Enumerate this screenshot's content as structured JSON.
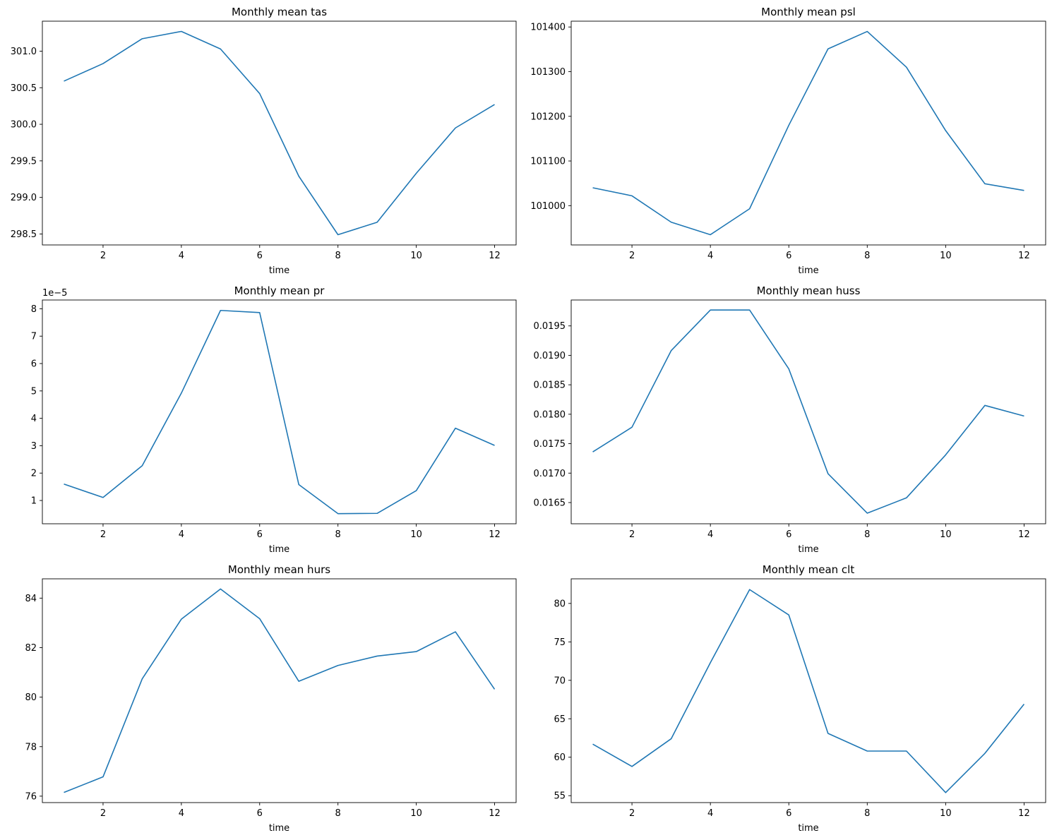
{
  "chart_data": [
    {
      "type": "line",
      "title": "Monthly mean tas",
      "xlabel": "time",
      "ylabel": "",
      "offset_text": "",
      "x": [
        1,
        2,
        3,
        4,
        5,
        6,
        7,
        8,
        9,
        10,
        11,
        12
      ],
      "series": [
        {
          "values": [
            300.59,
            300.83,
            301.17,
            301.27,
            301.03,
            300.42,
            299.29,
            298.49,
            298.66,
            299.33,
            299.95,
            300.27
          ],
          "color": "#1f77b4"
        }
      ],
      "xlim": [
        0.45,
        12.55
      ],
      "ylim": [
        298.35,
        301.41
      ],
      "xticks": [
        2,
        4,
        6,
        8,
        10,
        12
      ],
      "xticklabels": [
        "2",
        "4",
        "6",
        "8",
        "10",
        "12"
      ],
      "yticks": [
        298.5,
        299.0,
        299.5,
        300.0,
        300.5,
        301.0
      ],
      "yticklabels": [
        "298.5",
        "299.0",
        "299.5",
        "300.0",
        "300.5",
        "301.0"
      ],
      "grid": false
    },
    {
      "type": "line",
      "title": "Monthly mean psl",
      "xlabel": "time",
      "ylabel": "",
      "offset_text": "",
      "x": [
        1,
        2,
        3,
        4,
        5,
        6,
        7,
        8,
        9,
        10,
        11,
        12
      ],
      "series": [
        {
          "values": [
            101040,
            101022,
            100963,
            100935,
            100993,
            101180,
            101351,
            101390,
            101310,
            101168,
            101049,
            101034
          ],
          "color": "#1f77b4"
        }
      ],
      "xlim": [
        0.45,
        12.55
      ],
      "ylim": [
        100912,
        101413
      ],
      "xticks": [
        2,
        4,
        6,
        8,
        10,
        12
      ],
      "xticklabels": [
        "2",
        "4",
        "6",
        "8",
        "10",
        "12"
      ],
      "yticks": [
        101000,
        101100,
        101200,
        101300,
        101400
      ],
      "yticklabels": [
        "101000",
        "101100",
        "101200",
        "101300",
        "101400"
      ],
      "grid": false
    },
    {
      "type": "line",
      "title": "Monthly mean pr",
      "xlabel": "time",
      "ylabel": "",
      "offset_text": "1e−5",
      "x": [
        1,
        2,
        3,
        4,
        5,
        6,
        7,
        8,
        9,
        10,
        11,
        12
      ],
      "series": [
        {
          "values": [
            1.6e-05,
            1.11e-05,
            2.27e-05,
            4.92e-05,
            7.94e-05,
            7.86e-05,
            1.58e-05,
            5.2e-06,
            5.3e-06,
            1.36e-05,
            3.64e-05,
            3.01e-05
          ],
          "color": "#1f77b4"
        }
      ],
      "xlim": [
        0.45,
        12.55
      ],
      "ylim": [
        1.5e-06,
        8.32e-05
      ],
      "xticks": [
        2,
        4,
        6,
        8,
        10,
        12
      ],
      "xticklabels": [
        "2",
        "4",
        "6",
        "8",
        "10",
        "12"
      ],
      "yticks": [
        1e-05,
        2e-05,
        3e-05,
        4e-05,
        5e-05,
        6e-05,
        7e-05,
        8e-05
      ],
      "yticklabels": [
        "1",
        "2",
        "3",
        "4",
        "5",
        "6",
        "7",
        "8"
      ],
      "grid": false
    },
    {
      "type": "line",
      "title": "Monthly mean huss",
      "xlabel": "time",
      "ylabel": "",
      "offset_text": "",
      "x": [
        1,
        2,
        3,
        4,
        5,
        6,
        7,
        8,
        9,
        10,
        11,
        12
      ],
      "series": [
        {
          "values": [
            0.01736,
            0.01778,
            0.01908,
            0.01977,
            0.01977,
            0.01877,
            0.01699,
            0.01632,
            0.01658,
            0.01731,
            0.01815,
            0.01797
          ],
          "color": "#1f77b4"
        }
      ],
      "xlim": [
        0.45,
        12.55
      ],
      "ylim": [
        0.01614,
        0.01994
      ],
      "xticks": [
        2,
        4,
        6,
        8,
        10,
        12
      ],
      "xticklabels": [
        "2",
        "4",
        "6",
        "8",
        "10",
        "12"
      ],
      "yticks": [
        0.0165,
        0.017,
        0.0175,
        0.018,
        0.0185,
        0.019,
        0.0195
      ],
      "yticklabels": [
        "0.0165",
        "0.0170",
        "0.0175",
        "0.0180",
        "0.0185",
        "0.0190",
        "0.0195"
      ],
      "grid": false
    },
    {
      "type": "line",
      "title": "Monthly mean hurs",
      "xlabel": "time",
      "ylabel": "",
      "offset_text": "",
      "x": [
        1,
        2,
        3,
        4,
        5,
        6,
        7,
        8,
        9,
        10,
        11,
        12
      ],
      "series": [
        {
          "values": [
            76.15,
            76.78,
            80.74,
            83.15,
            84.37,
            83.17,
            80.64,
            81.28,
            81.66,
            81.84,
            82.64,
            80.32
          ],
          "color": "#1f77b4"
        }
      ],
      "xlim": [
        0.45,
        12.55
      ],
      "ylim": [
        75.74,
        84.78
      ],
      "xticks": [
        2,
        4,
        6,
        8,
        10,
        12
      ],
      "xticklabels": [
        "2",
        "4",
        "6",
        "8",
        "10",
        "12"
      ],
      "yticks": [
        76,
        78,
        80,
        82,
        84
      ],
      "yticklabels": [
        "76",
        "78",
        "80",
        "82",
        "84"
      ],
      "grid": false
    },
    {
      "type": "line",
      "title": "Monthly mean clt",
      "xlabel": "time",
      "ylabel": "",
      "offset_text": "",
      "x": [
        1,
        2,
        3,
        4,
        5,
        6,
        7,
        8,
        9,
        10,
        11,
        12
      ],
      "series": [
        {
          "values": [
            61.7,
            58.8,
            62.4,
            72.3,
            81.8,
            78.5,
            63.1,
            60.8,
            60.8,
            55.4,
            60.5,
            66.9
          ],
          "color": "#1f77b4"
        }
      ],
      "xlim": [
        0.45,
        12.55
      ],
      "ylim": [
        54.1,
        83.2
      ],
      "xticks": [
        2,
        4,
        6,
        8,
        10,
        12
      ],
      "xticklabels": [
        "2",
        "4",
        "6",
        "8",
        "10",
        "12"
      ],
      "yticks": [
        55,
        60,
        65,
        70,
        75,
        80
      ],
      "yticklabels": [
        "55",
        "60",
        "65",
        "70",
        "75",
        "80"
      ],
      "grid": false
    }
  ]
}
